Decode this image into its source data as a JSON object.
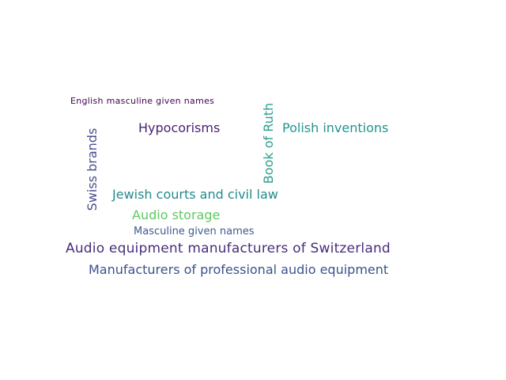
{
  "word_cloud": {
    "words": [
      {
        "text": "English masculine given names",
        "color": "#440154"
      },
      {
        "text": "Hypocorisms",
        "color": "#482173"
      },
      {
        "text": "Polish inventions",
        "color": "#1f968b"
      },
      {
        "text": "Book of Ruth",
        "color": "#2a9d8f"
      },
      {
        "text": "Swiss brands",
        "color": "#4a4e8c"
      },
      {
        "text": "Jewish courts and civil law",
        "color": "#238a8d"
      },
      {
        "text": "Audio storage",
        "color": "#5ec962"
      },
      {
        "text": "Masculine given names",
        "color": "#3e5b8e"
      },
      {
        "text": "Audio equipment manufacturers of Switzerland",
        "color": "#472d7b"
      },
      {
        "text": "Manufacturers of professional audio equipment",
        "color": "#3b528b"
      }
    ]
  }
}
